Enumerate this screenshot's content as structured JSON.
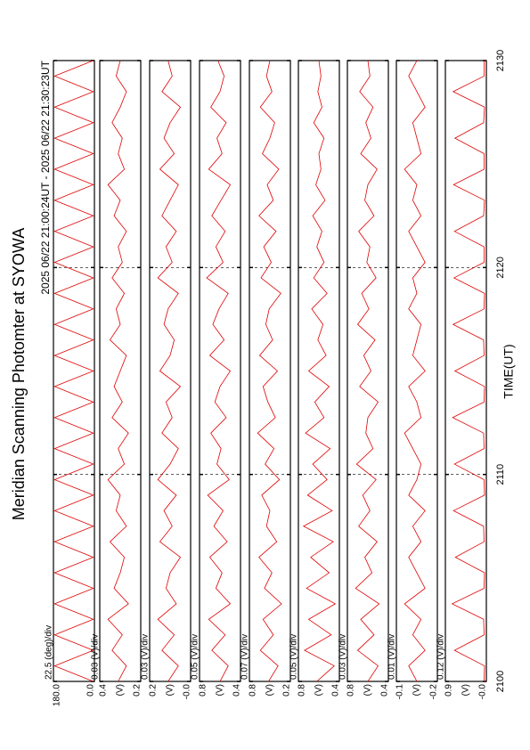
{
  "chart_data": {
    "type": "line",
    "title": "Meridian Scanning Photomter at SYOWA",
    "subtitle": "2025 06/22 21:00:24UT - 2025 06/22 21:30:23UT",
    "xlabel": "TIME(UT)",
    "x": [
      2100,
      2100.75,
      2101.5,
      2102.25,
      2103,
      2103.75,
      2104.5,
      2105.25,
      2106,
      2106.75,
      2107.5,
      2108.25,
      2109,
      2109.75,
      2110.5,
      2111.25,
      2112,
      2112.75,
      2113.5,
      2114.25,
      2115,
      2115.75,
      2116.5,
      2117.25,
      2118,
      2118.75,
      2119.5,
      2120.25,
      2121,
      2121.75,
      2122.5,
      2123.25,
      2124,
      2124.75,
      2125.5,
      2126.25,
      2127,
      2127.75,
      2128.5,
      2129.25,
      2130
    ],
    "xlim": [
      2100,
      2130
    ],
    "xticks": [
      2100,
      2110,
      2120,
      2130
    ],
    "grid": true,
    "color": "#e00000",
    "panels": [
      {
        "scale": "22.5 (deg)/div",
        "ylim": [
          0,
          180
        ],
        "yticks": [
          {
            "value": 0,
            "label": "0.0"
          },
          {
            "value": 180,
            "label": "180.0"
          }
        ],
        "values": [
          5,
          175,
          5,
          175,
          5,
          175,
          5,
          175,
          5,
          175,
          5,
          175,
          5,
          175,
          5,
          175,
          5,
          175,
          5,
          175,
          5,
          175,
          5,
          175,
          5,
          175,
          5,
          175,
          5,
          175,
          5,
          175,
          5,
          175,
          5,
          175,
          5,
          175,
          5,
          175,
          5
        ]
      },
      {
        "scale": "0.03 (V)/div",
        "unit": "(V)",
        "ylim": [
          0.2,
          0.4
        ],
        "yticks": [
          0.2,
          0.4
        ],
        "values": [
          0.31,
          0.27,
          0.34,
          0.29,
          0.36,
          0.26,
          0.33,
          0.3,
          0.28,
          0.35,
          0.27,
          0.32,
          0.3,
          0.36,
          0.28,
          0.31,
          0.26,
          0.34,
          0.29,
          0.33,
          0.3,
          0.27,
          0.35,
          0.3,
          0.32,
          0.28,
          0.34,
          0.29,
          0.31,
          0.27,
          0.33,
          0.3,
          0.36,
          0.28,
          0.31,
          0.29,
          0.34,
          0.3,
          0.27,
          0.32,
          0.3
        ]
      },
      {
        "scale": "0.03 (V)/div",
        "unit": "(V)",
        "ylim": [
          0,
          0.2
        ],
        "yticks": [
          {
            "value": 0,
            "label": "-0.0"
          },
          0.2
        ],
        "values": [
          0.11,
          0.06,
          0.14,
          0.08,
          0.16,
          0.07,
          0.12,
          0.1,
          0.05,
          0.15,
          0.09,
          0.13,
          0.07,
          0.16,
          0.1,
          0.06,
          0.14,
          0.09,
          0.12,
          0.05,
          0.15,
          0.1,
          0.08,
          0.13,
          0.11,
          0.06,
          0.16,
          0.09,
          0.12,
          0.07,
          0.14,
          0.1,
          0.06,
          0.15,
          0.08,
          0.13,
          0.1,
          0.05,
          0.14,
          0.09,
          0.11
        ]
      },
      {
        "scale": "0.05 (V)/div",
        "unit": "(V)",
        "ylim": [
          0.4,
          0.8
        ],
        "yticks": [
          0.4,
          0.8
        ],
        "values": [
          0.6,
          0.52,
          0.68,
          0.55,
          0.71,
          0.5,
          0.64,
          0.58,
          0.7,
          0.53,
          0.66,
          0.57,
          0.72,
          0.51,
          0.63,
          0.59,
          0.69,
          0.54,
          0.65,
          0.6,
          0.5,
          0.7,
          0.56,
          0.67,
          0.61,
          0.52,
          0.73,
          0.57,
          0.64,
          0.55,
          0.68,
          0.59,
          0.5,
          0.71,
          0.58,
          0.63,
          0.54,
          0.69,
          0.6,
          0.56,
          0.62
        ]
      },
      {
        "scale": "0.07 (V)/div",
        "unit": "(V)",
        "ylim": [
          0.2,
          0.8
        ],
        "yticks": [
          0.2,
          0.8
        ],
        "values": [
          0.52,
          0.38,
          0.64,
          0.45,
          0.6,
          0.33,
          0.58,
          0.47,
          0.66,
          0.4,
          0.55,
          0.5,
          0.62,
          0.36,
          0.57,
          0.44,
          0.68,
          0.42,
          0.53,
          0.6,
          0.39,
          0.65,
          0.46,
          0.56,
          0.51,
          0.34,
          0.63,
          0.48,
          0.59,
          0.41,
          0.66,
          0.45,
          0.54,
          0.37,
          0.61,
          0.5,
          0.43,
          0.64,
          0.47,
          0.55,
          0.5
        ]
      },
      {
        "scale": "0.05 (V)/div",
        "unit": "(V)",
        "ylim": [
          0.4,
          0.8
        ],
        "yticks": [
          0.4,
          0.8
        ],
        "values": [
          0.62,
          0.45,
          0.74,
          0.48,
          0.7,
          0.44,
          0.72,
          0.5,
          0.68,
          0.46,
          0.75,
          0.47,
          0.71,
          0.52,
          0.66,
          0.49,
          0.73,
          0.55,
          0.64,
          0.5,
          0.7,
          0.53,
          0.61,
          0.56,
          0.67,
          0.52,
          0.65,
          0.55,
          0.62,
          0.57,
          0.66,
          0.54,
          0.63,
          0.58,
          0.6,
          0.55,
          0.65,
          0.57,
          0.61,
          0.58,
          0.6
        ]
      },
      {
        "scale": "0.03 (V)/div",
        "unit": "(V)",
        "ylim": [
          0.4,
          0.8
        ],
        "yticks": [
          0.4,
          0.8
        ],
        "values": [
          0.6,
          0.5,
          0.7,
          0.54,
          0.67,
          0.49,
          0.72,
          0.56,
          0.63,
          0.51,
          0.69,
          0.58,
          0.65,
          0.52,
          0.71,
          0.55,
          0.62,
          0.6,
          0.5,
          0.68,
          0.57,
          0.64,
          0.53,
          0.7,
          0.59,
          0.66,
          0.52,
          0.61,
          0.58,
          0.69,
          0.54,
          0.63,
          0.6,
          0.51,
          0.67,
          0.57,
          0.62,
          0.55,
          0.68,
          0.58,
          0.6
        ]
      },
      {
        "scale": "0.01 (V)/div",
        "unit": "(V)",
        "ylim": [
          -0.2,
          -0.1
        ],
        "yticks": [
          -0.2,
          -0.1
        ],
        "values": [
          -0.15,
          -0.13,
          -0.17,
          -0.14,
          -0.16,
          -0.12,
          -0.17,
          -0.15,
          -0.13,
          -0.16,
          -0.14,
          -0.17,
          -0.13,
          -0.15,
          -0.16,
          -0.14,
          -0.12,
          -0.16,
          -0.15,
          -0.13,
          -0.17,
          -0.14,
          -0.15,
          -0.16,
          -0.13,
          -0.15,
          -0.14,
          -0.17,
          -0.15,
          -0.13,
          -0.16,
          -0.14,
          -0.15,
          -0.12,
          -0.16,
          -0.15,
          -0.14,
          -0.17,
          -0.15,
          -0.13,
          -0.15
        ]
      },
      {
        "scale": "0.12 (V)/div",
        "unit": "(V)",
        "ylim": [
          0,
          0.9
        ],
        "yticks": [
          {
            "value": 0,
            "label": "-0.0"
          },
          0.9
        ],
        "values": [
          0.05,
          0.04,
          0.7,
          0.05,
          0.06,
          0.75,
          0.05,
          0.04,
          0.68,
          0.05,
          0.06,
          0.72,
          0.04,
          0.05,
          0.7,
          0.05,
          0.06,
          0.74,
          0.05,
          0.04,
          0.69,
          0.05,
          0.06,
          0.73,
          0.05,
          0.04,
          0.71,
          0.05,
          0.05,
          0.7,
          0.06,
          0.04,
          0.72,
          0.05,
          0.05,
          0.69,
          0.06,
          0.04,
          0.73,
          0.05,
          0.05
        ]
      }
    ]
  }
}
